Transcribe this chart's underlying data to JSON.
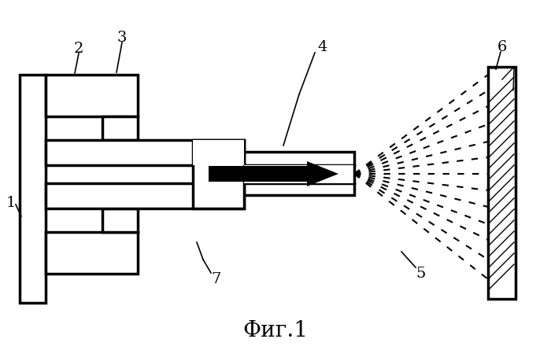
{
  "title": "Фиг.1",
  "title_fontsize": 20,
  "background_color": "#ffffff",
  "line_color": "#000000",
  "line_width": 2.5,
  "spray_color": "#000000",
  "arrow_color": "#000000"
}
